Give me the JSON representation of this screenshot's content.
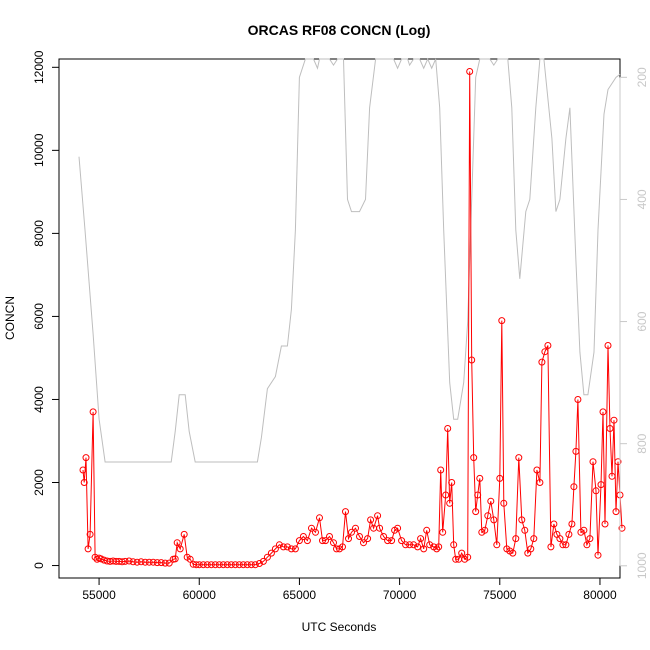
{
  "chart_data": {
    "type": "line",
    "title": "ORCAS RF08 CONCN (Log)",
    "xlabel": "UTC Seconds",
    "ylabel": "CONCN",
    "xlim": [
      53000,
      81000
    ],
    "ylim": [
      -300,
      12200
    ],
    "x_ticks": [
      55000,
      60000,
      65000,
      70000,
      75000,
      80000
    ],
    "y_ticks": [
      0,
      2000,
      4000,
      6000,
      8000,
      10000,
      12000
    ],
    "y2_ticks": [
      200,
      400,
      600,
      800,
      1000
    ],
    "y2_lim": [
      1020,
      170
    ],
    "grid": false,
    "colors": {
      "concn": "#ff0000",
      "secondary": "#bebebe",
      "axis": "#000000",
      "axis2": "#c8c8c8"
    },
    "series": [
      {
        "values": [
          [
            54200,
            2300
          ],
          [
            54260,
            2000
          ],
          [
            54350,
            2600
          ],
          [
            54450,
            400
          ],
          [
            54550,
            750
          ],
          [
            54700,
            3700
          ],
          [
            54800,
            200
          ],
          [
            54900,
            150
          ],
          [
            55000,
            180
          ],
          [
            55100,
            160
          ],
          [
            55250,
            130
          ],
          [
            55400,
            110
          ],
          [
            55550,
            100
          ],
          [
            55700,
            110
          ],
          [
            55850,
            100
          ],
          [
            56000,
            100
          ],
          [
            56150,
            90
          ],
          [
            56300,
            100
          ],
          [
            56500,
            110
          ],
          [
            56700,
            90
          ],
          [
            56900,
            80
          ],
          [
            57100,
            90
          ],
          [
            57300,
            80
          ],
          [
            57500,
            80
          ],
          [
            57700,
            80
          ],
          [
            57900,
            70
          ],
          [
            58100,
            70
          ],
          [
            58300,
            60
          ],
          [
            58500,
            60
          ],
          [
            58700,
            150
          ],
          [
            58800,
            160
          ],
          [
            58900,
            550
          ],
          [
            59050,
            400
          ],
          [
            59250,
            750
          ],
          [
            59400,
            200
          ],
          [
            59550,
            150
          ],
          [
            59700,
            30
          ],
          [
            59850,
            20
          ],
          [
            60000,
            20
          ],
          [
            60200,
            20
          ],
          [
            60400,
            20
          ],
          [
            60600,
            20
          ],
          [
            60800,
            20
          ],
          [
            61000,
            20
          ],
          [
            61200,
            20
          ],
          [
            61400,
            20
          ],
          [
            61600,
            20
          ],
          [
            61800,
            20
          ],
          [
            62000,
            20
          ],
          [
            62200,
            20
          ],
          [
            62400,
            20
          ],
          [
            62600,
            20
          ],
          [
            62800,
            20
          ],
          [
            63000,
            50
          ],
          [
            63200,
            100
          ],
          [
            63400,
            200
          ],
          [
            63600,
            300
          ],
          [
            63800,
            400
          ],
          [
            64000,
            500
          ],
          [
            64200,
            450
          ],
          [
            64400,
            450
          ],
          [
            64600,
            400
          ],
          [
            64800,
            400
          ],
          [
            65000,
            600
          ],
          [
            65200,
            700
          ],
          [
            65400,
            600
          ],
          [
            65600,
            900
          ],
          [
            65800,
            800
          ],
          [
            66000,
            1150
          ],
          [
            66150,
            600
          ],
          [
            66300,
            600
          ],
          [
            66500,
            700
          ],
          [
            66700,
            550
          ],
          [
            66850,
            400
          ],
          [
            67000,
            400
          ],
          [
            67150,
            450
          ],
          [
            67300,
            1300
          ],
          [
            67450,
            650
          ],
          [
            67600,
            800
          ],
          [
            67800,
            900
          ],
          [
            68000,
            700
          ],
          [
            68200,
            550
          ],
          [
            68400,
            650
          ],
          [
            68550,
            1100
          ],
          [
            68700,
            900
          ],
          [
            68900,
            1200
          ],
          [
            69000,
            900
          ],
          [
            69200,
            700
          ],
          [
            69400,
            600
          ],
          [
            69600,
            600
          ],
          [
            69750,
            850
          ],
          [
            69900,
            900
          ],
          [
            70100,
            600
          ],
          [
            70300,
            500
          ],
          [
            70500,
            500
          ],
          [
            70700,
            500
          ],
          [
            70900,
            450
          ],
          [
            71050,
            650
          ],
          [
            71200,
            400
          ],
          [
            71350,
            850
          ],
          [
            71500,
            500
          ],
          [
            71700,
            450
          ],
          [
            71850,
            400
          ],
          [
            71950,
            450
          ],
          [
            72050,
            2300
          ],
          [
            72150,
            800
          ],
          [
            72300,
            1700
          ],
          [
            72400,
            3300
          ],
          [
            72500,
            1500
          ],
          [
            72600,
            2000
          ],
          [
            72700,
            500
          ],
          [
            72800,
            150
          ],
          [
            72950,
            150
          ],
          [
            73100,
            300
          ],
          [
            73250,
            150
          ],
          [
            73400,
            200
          ],
          [
            73500,
            11900
          ],
          [
            73600,
            4950
          ],
          [
            73700,
            2600
          ],
          [
            73800,
            1300
          ],
          [
            73900,
            1700
          ],
          [
            74000,
            2100
          ],
          [
            74100,
            800
          ],
          [
            74250,
            850
          ],
          [
            74400,
            1200
          ],
          [
            74550,
            1550
          ],
          [
            74700,
            1100
          ],
          [
            74850,
            500
          ],
          [
            75000,
            2100
          ],
          [
            75100,
            5900
          ],
          [
            75200,
            1500
          ],
          [
            75350,
            400
          ],
          [
            75500,
            350
          ],
          [
            75650,
            300
          ],
          [
            75800,
            650
          ],
          [
            75950,
            2600
          ],
          [
            76100,
            1100
          ],
          [
            76250,
            850
          ],
          [
            76400,
            300
          ],
          [
            76550,
            400
          ],
          [
            76700,
            650
          ],
          [
            76850,
            2300
          ],
          [
            77000,
            2000
          ],
          [
            77100,
            4900
          ],
          [
            77250,
            5150
          ],
          [
            77400,
            5300
          ],
          [
            77550,
            450
          ],
          [
            77700,
            1000
          ],
          [
            77850,
            750
          ],
          [
            78000,
            650
          ],
          [
            78150,
            500
          ],
          [
            78300,
            500
          ],
          [
            78450,
            750
          ],
          [
            78600,
            1000
          ],
          [
            78700,
            1900
          ],
          [
            78800,
            2750
          ],
          [
            78900,
            4000
          ],
          [
            79050,
            800
          ],
          [
            79200,
            850
          ],
          [
            79350,
            500
          ],
          [
            79500,
            650
          ],
          [
            79650,
            2500
          ],
          [
            79800,
            1800
          ],
          [
            79900,
            250
          ],
          [
            80050,
            1950
          ],
          [
            80150,
            3700
          ],
          [
            80250,
            1000
          ],
          [
            80400,
            5300
          ],
          [
            80500,
            3300
          ],
          [
            80600,
            2150
          ],
          [
            80700,
            3500
          ],
          [
            80800,
            1300
          ],
          [
            80900,
            2500
          ],
          [
            81000,
            1700
          ],
          [
            81100,
            900
          ]
        ]
      }
    ],
    "secondary_series": {
      "values": [
        [
          54000,
          330
        ],
        [
          54300,
          450
        ],
        [
          54700,
          620
        ],
        [
          55000,
          760
        ],
        [
          55300,
          830
        ],
        [
          55500,
          830
        ],
        [
          56000,
          830
        ],
        [
          57000,
          830
        ],
        [
          58000,
          830
        ],
        [
          58600,
          830
        ],
        [
          58800,
          780
        ],
        [
          59000,
          720
        ],
        [
          59300,
          720
        ],
        [
          59500,
          780
        ],
        [
          59800,
          830
        ],
        [
          60500,
          830
        ],
        [
          61500,
          830
        ],
        [
          62500,
          830
        ],
        [
          62900,
          830
        ],
        [
          63100,
          790
        ],
        [
          63400,
          710
        ],
        [
          63800,
          690
        ],
        [
          64100,
          640
        ],
        [
          64400,
          640
        ],
        [
          64600,
          580
        ],
        [
          64800,
          450
        ],
        [
          65000,
          200
        ],
        [
          65300,
          160
        ],
        [
          65500,
          160
        ],
        [
          65700,
          160
        ],
        [
          65900,
          185
        ],
        [
          66000,
          160
        ],
        [
          66300,
          160
        ],
        [
          66500,
          160
        ],
        [
          66700,
          180
        ],
        [
          66900,
          160
        ],
        [
          67200,
          160
        ],
        [
          67400,
          400
        ],
        [
          67600,
          420
        ],
        [
          68000,
          420
        ],
        [
          68300,
          400
        ],
        [
          68500,
          250
        ],
        [
          68800,
          160
        ],
        [
          69000,
          160
        ],
        [
          69300,
          160
        ],
        [
          69500,
          160
        ],
        [
          69700,
          160
        ],
        [
          69900,
          185
        ],
        [
          70100,
          160
        ],
        [
          70400,
          160
        ],
        [
          70500,
          180
        ],
        [
          70700,
          160
        ],
        [
          71000,
          160
        ],
        [
          71200,
          185
        ],
        [
          71400,
          160
        ],
        [
          71600,
          185
        ],
        [
          71800,
          160
        ],
        [
          72000,
          250
        ],
        [
          72200,
          450
        ],
        [
          72500,
          700
        ],
        [
          72700,
          760
        ],
        [
          72900,
          760
        ],
        [
          73200,
          700
        ],
        [
          73400,
          600
        ],
        [
          73600,
          400
        ],
        [
          73800,
          200
        ],
        [
          74000,
          160
        ],
        [
          74500,
          160
        ],
        [
          74700,
          180
        ],
        [
          74900,
          160
        ],
        [
          75400,
          160
        ],
        [
          75600,
          250
        ],
        [
          75800,
          450
        ],
        [
          76000,
          530
        ],
        [
          76300,
          420
        ],
        [
          76500,
          400
        ],
        [
          76800,
          250
        ],
        [
          77000,
          160
        ],
        [
          77200,
          160
        ],
        [
          77600,
          300
        ],
        [
          77800,
          420
        ],
        [
          78000,
          400
        ],
        [
          78300,
          300
        ],
        [
          78500,
          250
        ],
        [
          78800,
          500
        ],
        [
          79000,
          650
        ],
        [
          79200,
          720
        ],
        [
          79400,
          720
        ],
        [
          79700,
          650
        ],
        [
          79900,
          450
        ],
        [
          80200,
          260
        ],
        [
          80400,
          220
        ],
        [
          80800,
          200
        ],
        [
          81000,
          195
        ]
      ]
    }
  }
}
